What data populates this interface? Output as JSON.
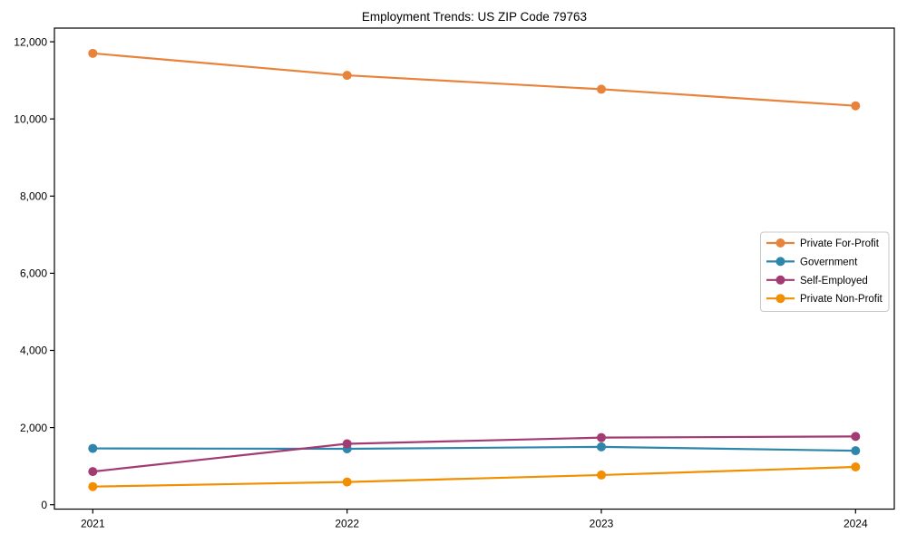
{
  "chart_data": {
    "type": "line",
    "title": "Employment Trends: US ZIP Code 79763",
    "categories": [
      "2021",
      "2022",
      "2023",
      "2024"
    ],
    "series": [
      {
        "name": "Private For-Profit",
        "color": "#E8833C",
        "values": [
          11700,
          11130,
          10770,
          10340
        ]
      },
      {
        "name": "Government",
        "color": "#2E86AB",
        "values": [
          1460,
          1450,
          1500,
          1400
        ]
      },
      {
        "name": "Self-Employed",
        "color": "#A23B72",
        "values": [
          860,
          1580,
          1740,
          1770
        ]
      },
      {
        "name": "Private Non-Profit",
        "color": "#F18F01",
        "values": [
          470,
          590,
          770,
          980
        ]
      }
    ],
    "xlabel": "",
    "ylabel": "",
    "ylim": [
      0,
      12000
    ],
    "yticks": [
      0,
      2000,
      4000,
      6000,
      8000,
      10000,
      12000
    ],
    "ytick_labels": [
      "0",
      "2,000",
      "4,000",
      "6,000",
      "8,000",
      "10,000",
      "12,000"
    ],
    "grid": false,
    "legend_position": "center-right",
    "marker": "circle",
    "axis_color": "#000000",
    "background_color": "#ffffff"
  }
}
